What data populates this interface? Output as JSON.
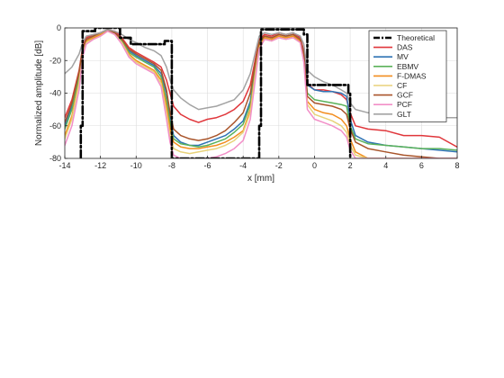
{
  "chart_data": {
    "type": "line",
    "title": "",
    "xlabel": "x [mm]",
    "ylabel": "Normalized amplitude [dB]",
    "xlim": [
      -14,
      8
    ],
    "ylim": [
      -80,
      0
    ],
    "xticks": [
      -14,
      -12,
      -10,
      -8,
      -6,
      -4,
      -2,
      0,
      2,
      4,
      6,
      8
    ],
    "yticks": [
      0,
      -20,
      -40,
      -60,
      -80
    ],
    "xtick_labels": [
      "-14",
      "-12",
      "-10",
      "-8",
      "-6",
      "-4",
      "-2",
      "0",
      "2",
      "4",
      "6",
      "8"
    ],
    "ytick_labels": [
      "0",
      "-20",
      "-40",
      "-60",
      "-80"
    ],
    "grid": true,
    "legend_position": "top-right",
    "series": [
      {
        "name": "Theoretical",
        "color": "#000000",
        "dash": "dashdot",
        "x": [
          -13.1,
          -13.1,
          -13.0,
          -13.0,
          -12.3,
          -12.3,
          -10.9,
          -10.9,
          -10.3,
          -10.3,
          -8.4,
          -8.4,
          -8.0,
          -8.0,
          -3.1,
          -3.1,
          -3.0,
          -3.0,
          -0.6,
          -0.6,
          -0.4,
          -0.4,
          1.9,
          1.9,
          2.0,
          2.0
        ],
        "y": [
          -80,
          -60,
          -60,
          -2,
          -2,
          0,
          0,
          -6,
          -6,
          -10,
          -10,
          -8,
          -8,
          -80,
          -80,
          -60,
          -60,
          -1,
          -1,
          -4,
          -4,
          -35,
          -35,
          -40,
          -40,
          -80
        ]
      },
      {
        "name": "DAS",
        "color": "#e0363b",
        "x": [
          -14,
          -13.6,
          -13.2,
          -13.0,
          -12.8,
          -12.4,
          -12.0,
          -11.6,
          -11.2,
          -10.8,
          -10.4,
          -10.0,
          -9.5,
          -9.0,
          -8.6,
          -8.3,
          -8.1,
          -7.9,
          -7.5,
          -7.0,
          -6.5,
          -6.0,
          -5.5,
          -5.0,
          -4.5,
          -4.0,
          -3.6,
          -3.3,
          -3.1,
          -2.8,
          -2.4,
          -2.0,
          -1.6,
          -1.2,
          -0.8,
          -0.6,
          -0.4,
          0.0,
          0.5,
          1.0,
          1.5,
          1.8,
          2.0,
          2.3,
          3.0,
          4.0,
          5.0,
          6.0,
          7.0,
          8.0
        ],
        "y": [
          -55,
          -44,
          -26,
          -12,
          -6,
          -4,
          -3,
          -1,
          -2,
          -6,
          -12,
          -15,
          -18,
          -21,
          -24,
          -32,
          -40,
          -48,
          -53,
          -56,
          -58,
          -56,
          -55,
          -53,
          -50,
          -45,
          -35,
          -18,
          -7,
          -4,
          -5,
          -3,
          -4,
          -3,
          -6,
          -14,
          -34,
          -38,
          -38,
          -39,
          -41,
          -44,
          -52,
          -60,
          -62,
          -63,
          -66,
          -66,
          -67,
          -73
        ]
      },
      {
        "name": "MV",
        "color": "#2f73b4",
        "x": [
          -14,
          -13.6,
          -13.2,
          -13.0,
          -12.8,
          -12.4,
          -12.0,
          -11.6,
          -11.2,
          -10.8,
          -10.4,
          -10.0,
          -9.5,
          -9.0,
          -8.6,
          -8.3,
          -8.1,
          -7.9,
          -7.5,
          -7.0,
          -6.5,
          -6.0,
          -5.5,
          -5.0,
          -4.5,
          -4.0,
          -3.6,
          -3.3,
          -3.1,
          -2.8,
          -2.4,
          -2.0,
          -1.6,
          -1.2,
          -0.8,
          -0.6,
          -0.4,
          0.0,
          0.5,
          1.0,
          1.5,
          1.8,
          2.0,
          2.3,
          3.0,
          4.0,
          5.0,
          6.0,
          7.0,
          8.0
        ],
        "y": [
          -60,
          -48,
          -28,
          -13,
          -7,
          -5,
          -3,
          -1,
          -3,
          -7,
          -14,
          -17,
          -20,
          -23,
          -28,
          -40,
          -55,
          -66,
          -70,
          -72,
          -72,
          -70,
          -68,
          -66,
          -62,
          -57,
          -45,
          -22,
          -9,
          -5,
          -6,
          -4,
          -5,
          -4,
          -7,
          -16,
          -35,
          -38,
          -39,
          -39,
          -40,
          -42,
          -56,
          -66,
          -70,
          -72,
          -73,
          -74,
          -75,
          -76
        ]
      },
      {
        "name": "EBMV",
        "color": "#5bb25a",
        "x": [
          -14,
          -13.6,
          -13.2,
          -13.0,
          -12.8,
          -12.4,
          -12.0,
          -11.6,
          -11.2,
          -10.8,
          -10.4,
          -10.0,
          -9.5,
          -9.0,
          -8.6,
          -8.3,
          -8.1,
          -7.9,
          -7.5,
          -7.0,
          -6.5,
          -6.0,
          -5.5,
          -5.0,
          -4.5,
          -4.0,
          -3.6,
          -3.3,
          -3.1,
          -2.8,
          -2.4,
          -2.0,
          -1.6,
          -1.2,
          -0.8,
          -0.6,
          -0.4,
          0.0,
          0.5,
          1.0,
          1.5,
          1.8,
          2.0,
          2.3,
          3.0,
          4.0,
          5.0,
          6.0,
          7.0,
          8.0
        ],
        "y": [
          -62,
          -50,
          -30,
          -14,
          -8,
          -6,
          -4,
          -2,
          -3,
          -8,
          -15,
          -18,
          -21,
          -24,
          -30,
          -44,
          -58,
          -68,
          -71,
          -72,
          -73,
          -72,
          -70,
          -68,
          -64,
          -59,
          -47,
          -24,
          -10,
          -6,
          -7,
          -5,
          -6,
          -5,
          -8,
          -18,
          -40,
          -44,
          -45,
          -46,
          -47,
          -48,
          -60,
          -68,
          -71,
          -72,
          -73,
          -74,
          -74,
          -75
        ]
      },
      {
        "name": "F-DMAS",
        "color": "#f28e1f",
        "x": [
          -14,
          -13.6,
          -13.2,
          -13.0,
          -12.8,
          -12.4,
          -12.0,
          -11.6,
          -11.2,
          -10.8,
          -10.4,
          -10.0,
          -9.5,
          -9.0,
          -8.6,
          -8.3,
          -8.1,
          -7.9,
          -7.5,
          -7.0,
          -6.5,
          -6.0,
          -5.5,
          -5.0,
          -4.5,
          -4.0,
          -3.6,
          -3.3,
          -3.1,
          -2.8,
          -2.4,
          -2.0,
          -1.6,
          -1.2,
          -0.8,
          -0.6,
          -0.4,
          0.0,
          0.5,
          1.0,
          1.5,
          1.8,
          2.0,
          2.3,
          3.0,
          4.0,
          5.0,
          6.0,
          7.0,
          8.0
        ],
        "y": [
          -66,
          -54,
          -33,
          -15,
          -8,
          -6,
          -4,
          -2,
          -4,
          -9,
          -16,
          -20,
          -23,
          -26,
          -32,
          -48,
          -62,
          -70,
          -73,
          -74,
          -74,
          -73,
          -72,
          -70,
          -67,
          -63,
          -50,
          -26,
          -11,
          -6,
          -7,
          -5,
          -6,
          -5,
          -8,
          -19,
          -45,
          -50,
          -52,
          -53,
          -56,
          -60,
          -68,
          -76,
          -80,
          -80,
          -80,
          -80,
          -80,
          -80
        ]
      },
      {
        "name": "CF",
        "color": "#e8d27a",
        "x": [
          -14,
          -13.6,
          -13.2,
          -13.0,
          -12.8,
          -12.4,
          -12.0,
          -11.6,
          -11.2,
          -10.8,
          -10.4,
          -10.0,
          -9.5,
          -9.0,
          -8.6,
          -8.3,
          -8.1,
          -7.9,
          -7.5,
          -7.0,
          -6.5,
          -6.0,
          -5.5,
          -5.0,
          -4.5,
          -4.0,
          -3.6,
          -3.3,
          -3.1,
          -2.8,
          -2.4,
          -2.0,
          -1.6,
          -1.2,
          -0.8,
          -0.6,
          -0.4,
          0.0,
          0.5,
          1.0,
          1.5,
          1.8,
          2.0,
          2.3,
          3.0,
          4.0,
          5.0,
          6.0,
          7.0,
          8.0
        ],
        "y": [
          -68,
          -56,
          -34,
          -16,
          -9,
          -7,
          -5,
          -2,
          -4,
          -9,
          -17,
          -21,
          -24,
          -27,
          -34,
          -52,
          -66,
          -74,
          -76,
          -77,
          -76,
          -75,
          -74,
          -72,
          -69,
          -64,
          -52,
          -27,
          -12,
          -7,
          -8,
          -6,
          -7,
          -6,
          -9,
          -20,
          -47,
          -53,
          -55,
          -57,
          -60,
          -64,
          -72,
          -78,
          -80,
          -80,
          -80,
          -80,
          -80,
          -80
        ]
      },
      {
        "name": "GCF",
        "color": "#a9542a",
        "x": [
          -14,
          -13.6,
          -13.2,
          -13.0,
          -12.8,
          -12.4,
          -12.0,
          -11.6,
          -11.2,
          -10.8,
          -10.4,
          -10.0,
          -9.5,
          -9.0,
          -8.6,
          -8.3,
          -8.1,
          -7.9,
          -7.5,
          -7.0,
          -6.5,
          -6.0,
          -5.5,
          -5.0,
          -4.5,
          -4.0,
          -3.6,
          -3.3,
          -3.1,
          -2.8,
          -2.4,
          -2.0,
          -1.6,
          -1.2,
          -0.8,
          -0.6,
          -0.4,
          0.0,
          0.5,
          1.0,
          1.5,
          1.8,
          2.0,
          2.3,
          3.0,
          4.0,
          5.0,
          6.0,
          7.0,
          8.0
        ],
        "y": [
          -58,
          -46,
          -27,
          -13,
          -7,
          -5,
          -3,
          -1,
          -3,
          -7,
          -13,
          -16,
          -19,
          -22,
          -26,
          -38,
          -52,
          -62,
          -66,
          -68,
          -69,
          -68,
          -66,
          -63,
          -58,
          -52,
          -40,
          -20,
          -8,
          -5,
          -6,
          -4,
          -5,
          -4,
          -7,
          -16,
          -42,
          -46,
          -47,
          -48,
          -50,
          -53,
          -62,
          -70,
          -74,
          -76,
          -78,
          -79,
          -80,
          -80
        ]
      },
      {
        "name": "PCF",
        "color": "#f28fc8",
        "x": [
          -14,
          -13.6,
          -13.2,
          -13.0,
          -12.8,
          -12.4,
          -12.0,
          -11.6,
          -11.2,
          -10.8,
          -10.4,
          -10.0,
          -9.5,
          -9.0,
          -8.6,
          -8.3,
          -8.1,
          -7.9,
          -7.5,
          -7.0,
          -6.5,
          -6.0,
          -5.5,
          -5.0,
          -4.5,
          -4.0,
          -3.6,
          -3.3,
          -3.1,
          -2.8,
          -2.4,
          -2.0,
          -1.6,
          -1.2,
          -0.8,
          -0.6,
          -0.4,
          0.0,
          0.5,
          1.0,
          1.5,
          1.8,
          2.0,
          2.3,
          3.0,
          4.0,
          5.0,
          6.0,
          7.0,
          8.0
        ],
        "y": [
          -72,
          -60,
          -38,
          -18,
          -10,
          -7,
          -5,
          -2,
          -4,
          -10,
          -18,
          -22,
          -25,
          -28,
          -36,
          -56,
          -70,
          -78,
          -80,
          -80,
          -80,
          -80,
          -79,
          -77,
          -74,
          -69,
          -56,
          -30,
          -13,
          -7,
          -8,
          -6,
          -7,
          -6,
          -9,
          -21,
          -50,
          -56,
          -58,
          -60,
          -63,
          -67,
          -75,
          -80,
          -80,
          -80,
          -80,
          -80,
          -80,
          -80
        ]
      },
      {
        "name": "GLT",
        "color": "#a3a3a3",
        "x": [
          -14,
          -13.6,
          -13.2,
          -13.0,
          -12.8,
          -12.4,
          -12.0,
          -11.6,
          -11.2,
          -10.8,
          -10.4,
          -10.0,
          -9.5,
          -9.0,
          -8.6,
          -8.3,
          -8.1,
          -7.9,
          -7.5,
          -7.0,
          -6.5,
          -6.0,
          -5.5,
          -5.0,
          -4.5,
          -4.0,
          -3.6,
          -3.3,
          -3.1,
          -2.8,
          -2.4,
          -2.0,
          -1.6,
          -1.2,
          -0.8,
          -0.6,
          -0.4,
          0.0,
          0.5,
          1.0,
          1.5,
          1.8,
          2.0,
          2.3,
          3.0,
          4.0,
          5.0,
          6.0,
          7.0,
          8.0
        ],
        "y": [
          -28,
          -24,
          -16,
          -9,
          -5,
          -4,
          -3,
          -1,
          -2,
          -4,
          -7,
          -9,
          -12,
          -14,
          -17,
          -24,
          -32,
          -38,
          -43,
          -47,
          -50,
          -49,
          -48,
          -46,
          -44,
          -38,
          -28,
          -14,
          -5,
          -3,
          -4,
          -3,
          -4,
          -3,
          -5,
          -10,
          -26,
          -30,
          -33,
          -35,
          -38,
          -40,
          -46,
          -50,
          -52,
          -53,
          -54,
          -54,
          -55,
          -55
        ]
      }
    ]
  }
}
